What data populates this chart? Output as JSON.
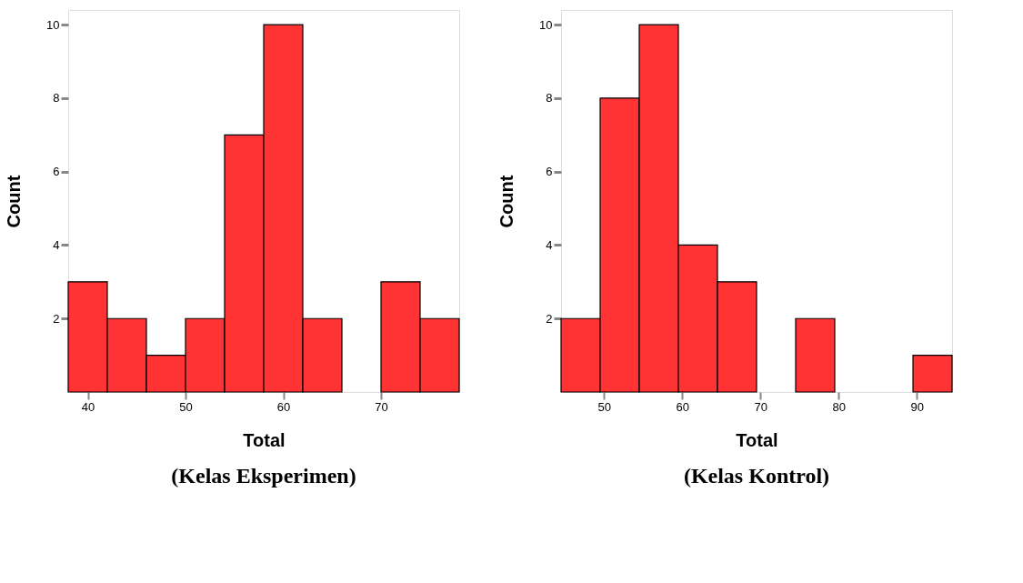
{
  "chart_data": [
    {
      "type": "histogram",
      "title": "(Kelas Eksperimen)",
      "xlabel": "Total",
      "ylabel": "Count",
      "bins": [
        38,
        42,
        46,
        50,
        54,
        58,
        62,
        66,
        70,
        74,
        78
      ],
      "values": [
        3,
        2,
        1,
        2,
        7,
        10,
        2,
        0,
        3,
        2
      ],
      "color": "#ff3333",
      "xlim": [
        38,
        78
      ],
      "xticks": [
        40,
        50,
        60,
        70
      ],
      "ylim": [
        0,
        10.4
      ],
      "yticks": [
        2,
        4,
        6,
        8,
        10
      ],
      "grid": false
    },
    {
      "type": "histogram",
      "title": "(Kelas Kontrol)",
      "xlabel": "Total",
      "ylabel": "Count",
      "bins": [
        44.5,
        49.5,
        54.5,
        59.5,
        64.5,
        69.5,
        74.5,
        79.5,
        84.5,
        89.5,
        94.5
      ],
      "values": [
        2,
        8,
        10,
        4,
        3,
        0,
        2,
        0,
        0,
        1
      ],
      "color": "#ff3333",
      "xlim": [
        44.5,
        94.5
      ],
      "xticks": [
        50,
        60,
        70,
        80,
        90
      ],
      "ylim": [
        0,
        10.4
      ],
      "yticks": [
        2,
        4,
        6,
        8,
        10
      ],
      "grid": false
    }
  ]
}
